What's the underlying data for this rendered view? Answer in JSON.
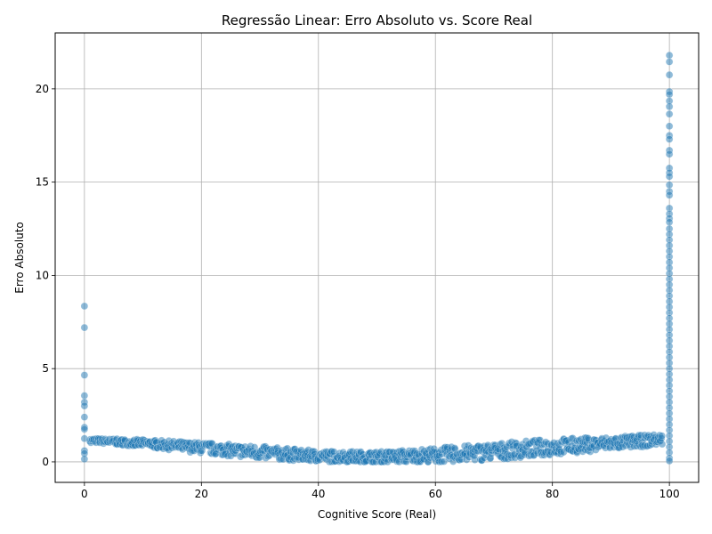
{
  "chart_data": {
    "type": "scatter",
    "title": "Regressão Linear: Erro Absoluto vs. Score Real",
    "xlabel": "Cognitive Score (Real)",
    "ylabel": "Erro Absoluto",
    "xlim": [
      -5,
      105
    ],
    "ylim": [
      -1.1,
      23.0
    ],
    "xticks": [
      0,
      20,
      40,
      60,
      80,
      100
    ],
    "yticks": [
      0,
      5,
      10,
      15,
      20
    ],
    "grid": true,
    "marker_color": "#1f77b4",
    "marker_alpha": 0.5,
    "series": [
      {
        "name": "",
        "points": [
          [
            0,
            8.35
          ],
          [
            0,
            7.2
          ],
          [
            0,
            4.65
          ],
          [
            0,
            3.55
          ],
          [
            0,
            3.2
          ],
          [
            0,
            3.0
          ],
          [
            0,
            2.4
          ],
          [
            0,
            1.85
          ],
          [
            0,
            1.75
          ],
          [
            0,
            1.25
          ],
          [
            0,
            0.6
          ],
          [
            0,
            0.45
          ],
          [
            0,
            0.15
          ],
          [
            100,
            21.8
          ],
          [
            100,
            21.45
          ],
          [
            100,
            20.75
          ],
          [
            100,
            19.85
          ],
          [
            100,
            19.7
          ],
          [
            100,
            19.35
          ],
          [
            100,
            19.05
          ],
          [
            100,
            18.65
          ],
          [
            100,
            18.0
          ],
          [
            100,
            17.5
          ],
          [
            100,
            17.3
          ],
          [
            100,
            16.7
          ],
          [
            100,
            16.5
          ],
          [
            100,
            15.75
          ],
          [
            100,
            15.5
          ],
          [
            100,
            15.3
          ],
          [
            100,
            14.85
          ],
          [
            100,
            14.5
          ],
          [
            100,
            14.3
          ],
          [
            100,
            13.6
          ],
          [
            100,
            13.3
          ],
          [
            100,
            13.05
          ],
          [
            100,
            12.85
          ],
          [
            100,
            12.5
          ],
          [
            100,
            12.2
          ],
          [
            100,
            11.9
          ],
          [
            100,
            11.6
          ],
          [
            100,
            11.3
          ],
          [
            100,
            11.0
          ],
          [
            100,
            10.7
          ],
          [
            100,
            10.4
          ],
          [
            100,
            10.1
          ],
          [
            100,
            9.8
          ],
          [
            100,
            9.5
          ],
          [
            100,
            9.2
          ],
          [
            100,
            8.9
          ],
          [
            100,
            8.6
          ],
          [
            100,
            8.3
          ],
          [
            100,
            8.0
          ],
          [
            100,
            7.7
          ],
          [
            100,
            7.4
          ],
          [
            100,
            7.1
          ],
          [
            100,
            6.8
          ],
          [
            100,
            6.5
          ],
          [
            100,
            6.2
          ],
          [
            100,
            5.9
          ],
          [
            100,
            5.6
          ],
          [
            100,
            5.3
          ],
          [
            100,
            5.0
          ],
          [
            100,
            4.7
          ],
          [
            100,
            4.4
          ],
          [
            100,
            4.1
          ],
          [
            100,
            3.8
          ],
          [
            100,
            3.5
          ],
          [
            100,
            3.2
          ],
          [
            100,
            2.9
          ],
          [
            100,
            2.6
          ],
          [
            100,
            2.3
          ],
          [
            100,
            2.0
          ],
          [
            100,
            1.7
          ],
          [
            100,
            1.4
          ],
          [
            100,
            1.1
          ],
          [
            100,
            0.8
          ],
          [
            100,
            0.5
          ],
          [
            100,
            0.2
          ],
          [
            100,
            0.05
          ]
        ],
        "band": {
          "x_range": [
            1,
            99
          ],
          "x_step": 0.33,
          "center": [
            [
              1,
              1.15
            ],
            [
              10,
              1.0
            ],
            [
              20,
              0.75
            ],
            [
              30,
              0.5
            ],
            [
              40,
              0.3
            ],
            [
              50,
              0.25
            ],
            [
              60,
              0.35
            ],
            [
              70,
              0.55
            ],
            [
              80,
              0.8
            ],
            [
              90,
              1.0
            ],
            [
              99,
              1.2
            ]
          ],
          "half_width": [
            [
              1,
              0.12
            ],
            [
              10,
              0.2
            ],
            [
              20,
              0.3
            ],
            [
              30,
              0.35
            ],
            [
              40,
              0.3
            ],
            [
              50,
              0.3
            ],
            [
              60,
              0.4
            ],
            [
              70,
              0.45
            ],
            [
              80,
              0.45
            ],
            [
              90,
              0.35
            ],
            [
              99,
              0.3
            ]
          ]
        }
      }
    ]
  }
}
